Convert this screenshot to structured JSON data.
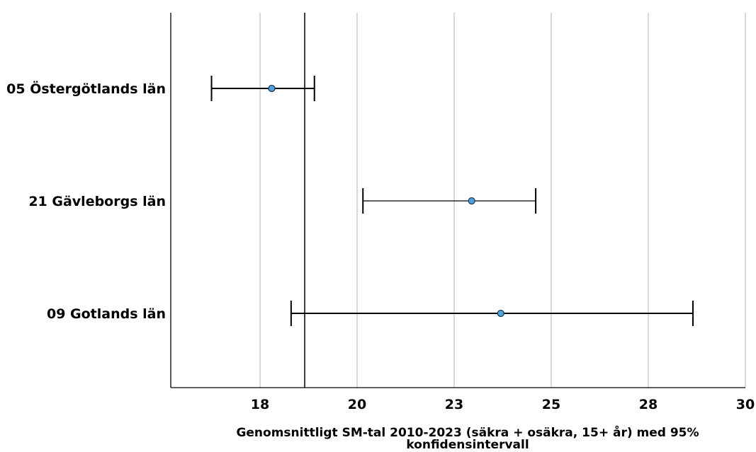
{
  "chart_data": {
    "type": "scatter",
    "subtype": "horizontal error bar (mean with 95% confidence interval)",
    "categories": [
      "05 Östergötlands län",
      "21 Gävleborgs län",
      "09 Gotlands län"
    ],
    "series": [
      {
        "means": [
          18.1,
          23.25,
          24.0
        ],
        "ci_lower": [
          16.55,
          20.45,
          18.6
        ],
        "ci_upper": [
          19.2,
          24.9,
          28.95
        ]
      }
    ],
    "reference_line": 18.95,
    "xlabel_lines": [
      "Genomsnittligt SM-tal 2010-2023 (säkra + osäkra, 15+ år) med 95%",
      "konfidensintervall"
    ],
    "xticks": [
      {
        "value": 17.8,
        "label": "18"
      },
      {
        "value": 20.3,
        "label": "20"
      },
      {
        "value": 22.8,
        "label": "23"
      },
      {
        "value": 25.3,
        "label": "25"
      },
      {
        "value": 27.8,
        "label": "28"
      },
      {
        "value": 30.3,
        "label": "30"
      }
    ],
    "xlim": [
      15.5,
      30.3
    ],
    "grid": "vertical",
    "colors": {
      "marker_fill": "#4FA3DC",
      "marker_stroke": "#1F3A5A",
      "gridline": "#B4B4B4",
      "axis": "#000000"
    }
  }
}
